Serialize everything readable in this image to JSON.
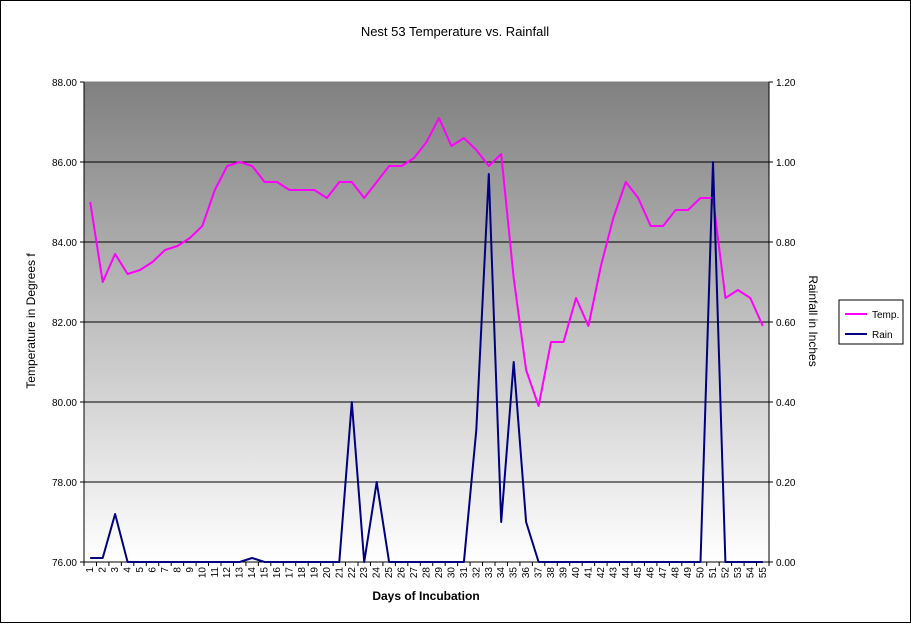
{
  "chart_data": {
    "type": "line",
    "title": "Nest 53 Temperature vs. Rainfall",
    "xlabel": "Days of Incubation",
    "ylabel": "Temperature in Degrees f",
    "y2label": "Rainfall in Inches",
    "ylim": [
      76,
      88
    ],
    "y2lim": [
      0,
      1.2
    ],
    "yticks": [
      "76.00",
      "78.00",
      "80.00",
      "82.00",
      "84.00",
      "86.00",
      "88.00"
    ],
    "y2ticks": [
      "0.00",
      "0.20",
      "0.40",
      "0.60",
      "0.80",
      "1.00",
      "1.20"
    ],
    "grid": true,
    "legend_position": "right",
    "categories": [
      "1",
      "2",
      "3",
      "4",
      "5",
      "6",
      "7",
      "8",
      "9",
      "10",
      "11",
      "12",
      "13",
      "14",
      "15",
      "16",
      "17",
      "18",
      "19",
      "20",
      "21",
      "22",
      "23",
      "24",
      "25",
      "26",
      "27",
      "28",
      "29",
      "30",
      "31",
      "32",
      "33",
      "34",
      "35",
      "36",
      "37",
      "38",
      "39",
      "40",
      "41",
      "42",
      "43",
      "44",
      "45",
      "46",
      "47",
      "48",
      "49",
      "50",
      "51",
      "52",
      "53",
      "54",
      "55"
    ],
    "series": [
      {
        "name": "Temp.",
        "axis": "left",
        "color": "#ff00ff",
        "values": [
          85.0,
          83.0,
          83.7,
          83.2,
          83.3,
          83.5,
          83.8,
          83.9,
          84.1,
          84.4,
          85.3,
          85.9,
          86.0,
          85.9,
          85.5,
          85.5,
          85.3,
          85.3,
          85.3,
          85.1,
          85.5,
          85.5,
          85.1,
          85.5,
          85.9,
          85.9,
          86.1,
          86.5,
          87.1,
          86.4,
          86.6,
          86.3,
          85.9,
          86.2,
          83.1,
          80.8,
          79.9,
          81.5,
          81.5,
          82.6,
          81.9,
          83.4,
          84.6,
          85.5,
          85.1,
          84.4,
          84.4,
          84.8,
          84.8,
          85.1,
          85.1,
          82.6,
          82.8,
          82.6,
          81.9
        ]
      },
      {
        "name": "Rain",
        "axis": "right",
        "color": "#000080",
        "values": [
          0.01,
          0.01,
          0.12,
          0.0,
          0.0,
          0.0,
          0.0,
          0.0,
          0.0,
          0.0,
          0.0,
          0.0,
          0.0,
          0.01,
          0.0,
          0.0,
          0.0,
          0.0,
          0.0,
          0.0,
          0.0,
          0.4,
          0.0,
          0.2,
          0.0,
          0.0,
          0.0,
          0.0,
          0.0,
          0.0,
          0.0,
          0.33,
          0.97,
          0.1,
          0.5,
          0.1,
          0.0,
          0.0,
          0.0,
          0.0,
          0.0,
          0.0,
          0.0,
          0.0,
          0.0,
          0.0,
          0.0,
          0.0,
          0.0,
          0.0,
          1.0,
          0.0,
          0.0,
          0.0,
          0.0
        ]
      }
    ]
  }
}
